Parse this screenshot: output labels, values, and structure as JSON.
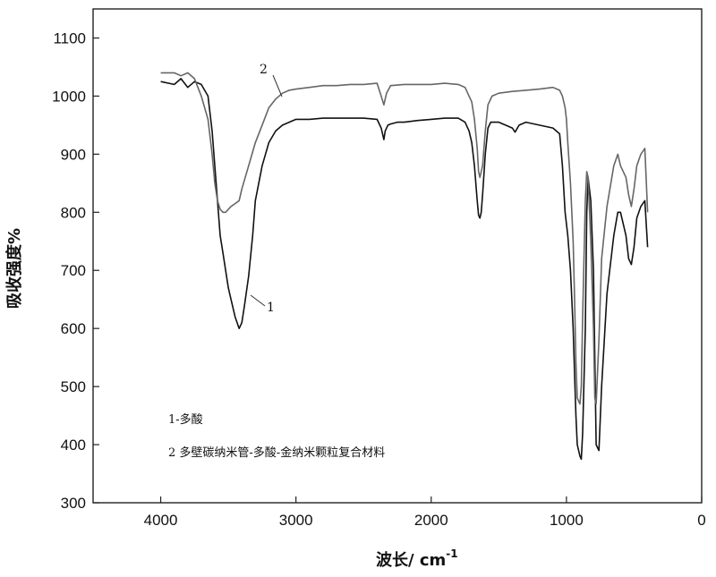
{
  "chart_data": {
    "type": "line",
    "title": "",
    "xlabel": "波长/ cm",
    "xlabel_superscript": "-1",
    "ylabel": "吸收强度%",
    "xlim": [
      4500,
      0
    ],
    "ylim": [
      300,
      1150
    ],
    "x_ticks": [
      4000,
      3000,
      2000,
      1000,
      0
    ],
    "y_ticks": [
      300,
      400,
      500,
      600,
      700,
      800,
      900,
      1000,
      1100
    ],
    "grid": false,
    "legend": {
      "placement": "bottom-left",
      "entries": [
        "1-多酸",
        "2  多壁碳纳米管-多酸-金纳米颗粒复合材料"
      ]
    },
    "series": [
      {
        "label": "1",
        "color": "#111111",
        "x": [
          4000,
          3900,
          3850,
          3800,
          3750,
          3700,
          3650,
          3620,
          3600,
          3580,
          3560,
          3540,
          3520,
          3500,
          3480,
          3450,
          3420,
          3400,
          3380,
          3350,
          3320,
          3300,
          3250,
          3200,
          3150,
          3100,
          3050,
          3000,
          2950,
          2900,
          2800,
          2700,
          2600,
          2500,
          2400,
          2370,
          2350,
          2340,
          2320,
          2300,
          2250,
          2200,
          2100,
          2000,
          1900,
          1800,
          1750,
          1720,
          1700,
          1680,
          1660,
          1650,
          1640,
          1630,
          1620,
          1600,
          1580,
          1560,
          1500,
          1450,
          1400,
          1380,
          1350,
          1300,
          1200,
          1100,
          1050,
          1030,
          1010,
          990,
          970,
          950,
          940,
          930,
          920,
          900,
          890,
          880,
          860,
          850,
          840,
          820,
          800,
          790,
          780,
          760,
          740,
          700,
          650,
          620,
          600,
          560,
          540,
          520,
          500,
          480,
          450,
          420,
          400
        ],
        "y": [
          1025,
          1020,
          1030,
          1015,
          1025,
          1020,
          1000,
          940,
          880,
          820,
          760,
          730,
          700,
          670,
          650,
          620,
          600,
          610,
          640,
          690,
          760,
          820,
          880,
          920,
          940,
          950,
          955,
          960,
          960,
          960,
          962,
          962,
          962,
          962,
          960,
          945,
          925,
          940,
          950,
          952,
          955,
          955,
          958,
          960,
          962,
          962,
          955,
          940,
          920,
          880,
          820,
          795,
          790,
          800,
          830,
          900,
          945,
          955,
          955,
          950,
          945,
          938,
          950,
          955,
          950,
          945,
          935,
          880,
          800,
          760,
          700,
          600,
          520,
          450,
          400,
          380,
          375,
          420,
          600,
          800,
          860,
          820,
          700,
          550,
          400,
          390,
          500,
          660,
          760,
          800,
          800,
          760,
          720,
          710,
          740,
          790,
          810,
          820,
          740
        ]
      },
      {
        "label": "2",
        "color": "#666666",
        "x": [
          4000,
          3900,
          3850,
          3800,
          3750,
          3700,
          3650,
          3620,
          3600,
          3580,
          3560,
          3540,
          3520,
          3500,
          3480,
          3450,
          3420,
          3400,
          3350,
          3300,
          3250,
          3200,
          3150,
          3100,
          3050,
          3000,
          2900,
          2800,
          2700,
          2600,
          2500,
          2400,
          2370,
          2350,
          2330,
          2300,
          2200,
          2100,
          2000,
          1900,
          1800,
          1750,
          1700,
          1680,
          1660,
          1650,
          1640,
          1620,
          1600,
          1580,
          1550,
          1500,
          1400,
          1300,
          1200,
          1100,
          1050,
          1030,
          1010,
          1000,
          990,
          970,
          950,
          940,
          930,
          920,
          900,
          890,
          880,
          860,
          850,
          840,
          820,
          800,
          790,
          780,
          760,
          740,
          700,
          650,
          620,
          600,
          560,
          540,
          520,
          500,
          480,
          450,
          420,
          400
        ],
        "y": [
          1040,
          1040,
          1035,
          1040,
          1030,
          1000,
          960,
          900,
          850,
          820,
          805,
          800,
          800,
          805,
          810,
          815,
          820,
          840,
          880,
          920,
          950,
          980,
          995,
          1005,
          1010,
          1012,
          1015,
          1018,
          1018,
          1020,
          1020,
          1022,
          1000,
          985,
          1005,
          1018,
          1020,
          1020,
          1020,
          1022,
          1020,
          1015,
          990,
          960,
          910,
          870,
          860,
          880,
          940,
          985,
          1000,
          1005,
          1008,
          1010,
          1012,
          1015,
          1010,
          1000,
          980,
          960,
          920,
          850,
          750,
          650,
          540,
          480,
          470,
          500,
          620,
          820,
          870,
          860,
          750,
          600,
          480,
          470,
          580,
          720,
          810,
          880,
          900,
          880,
          860,
          830,
          810,
          840,
          880,
          900,
          910,
          800
        ]
      }
    ]
  }
}
